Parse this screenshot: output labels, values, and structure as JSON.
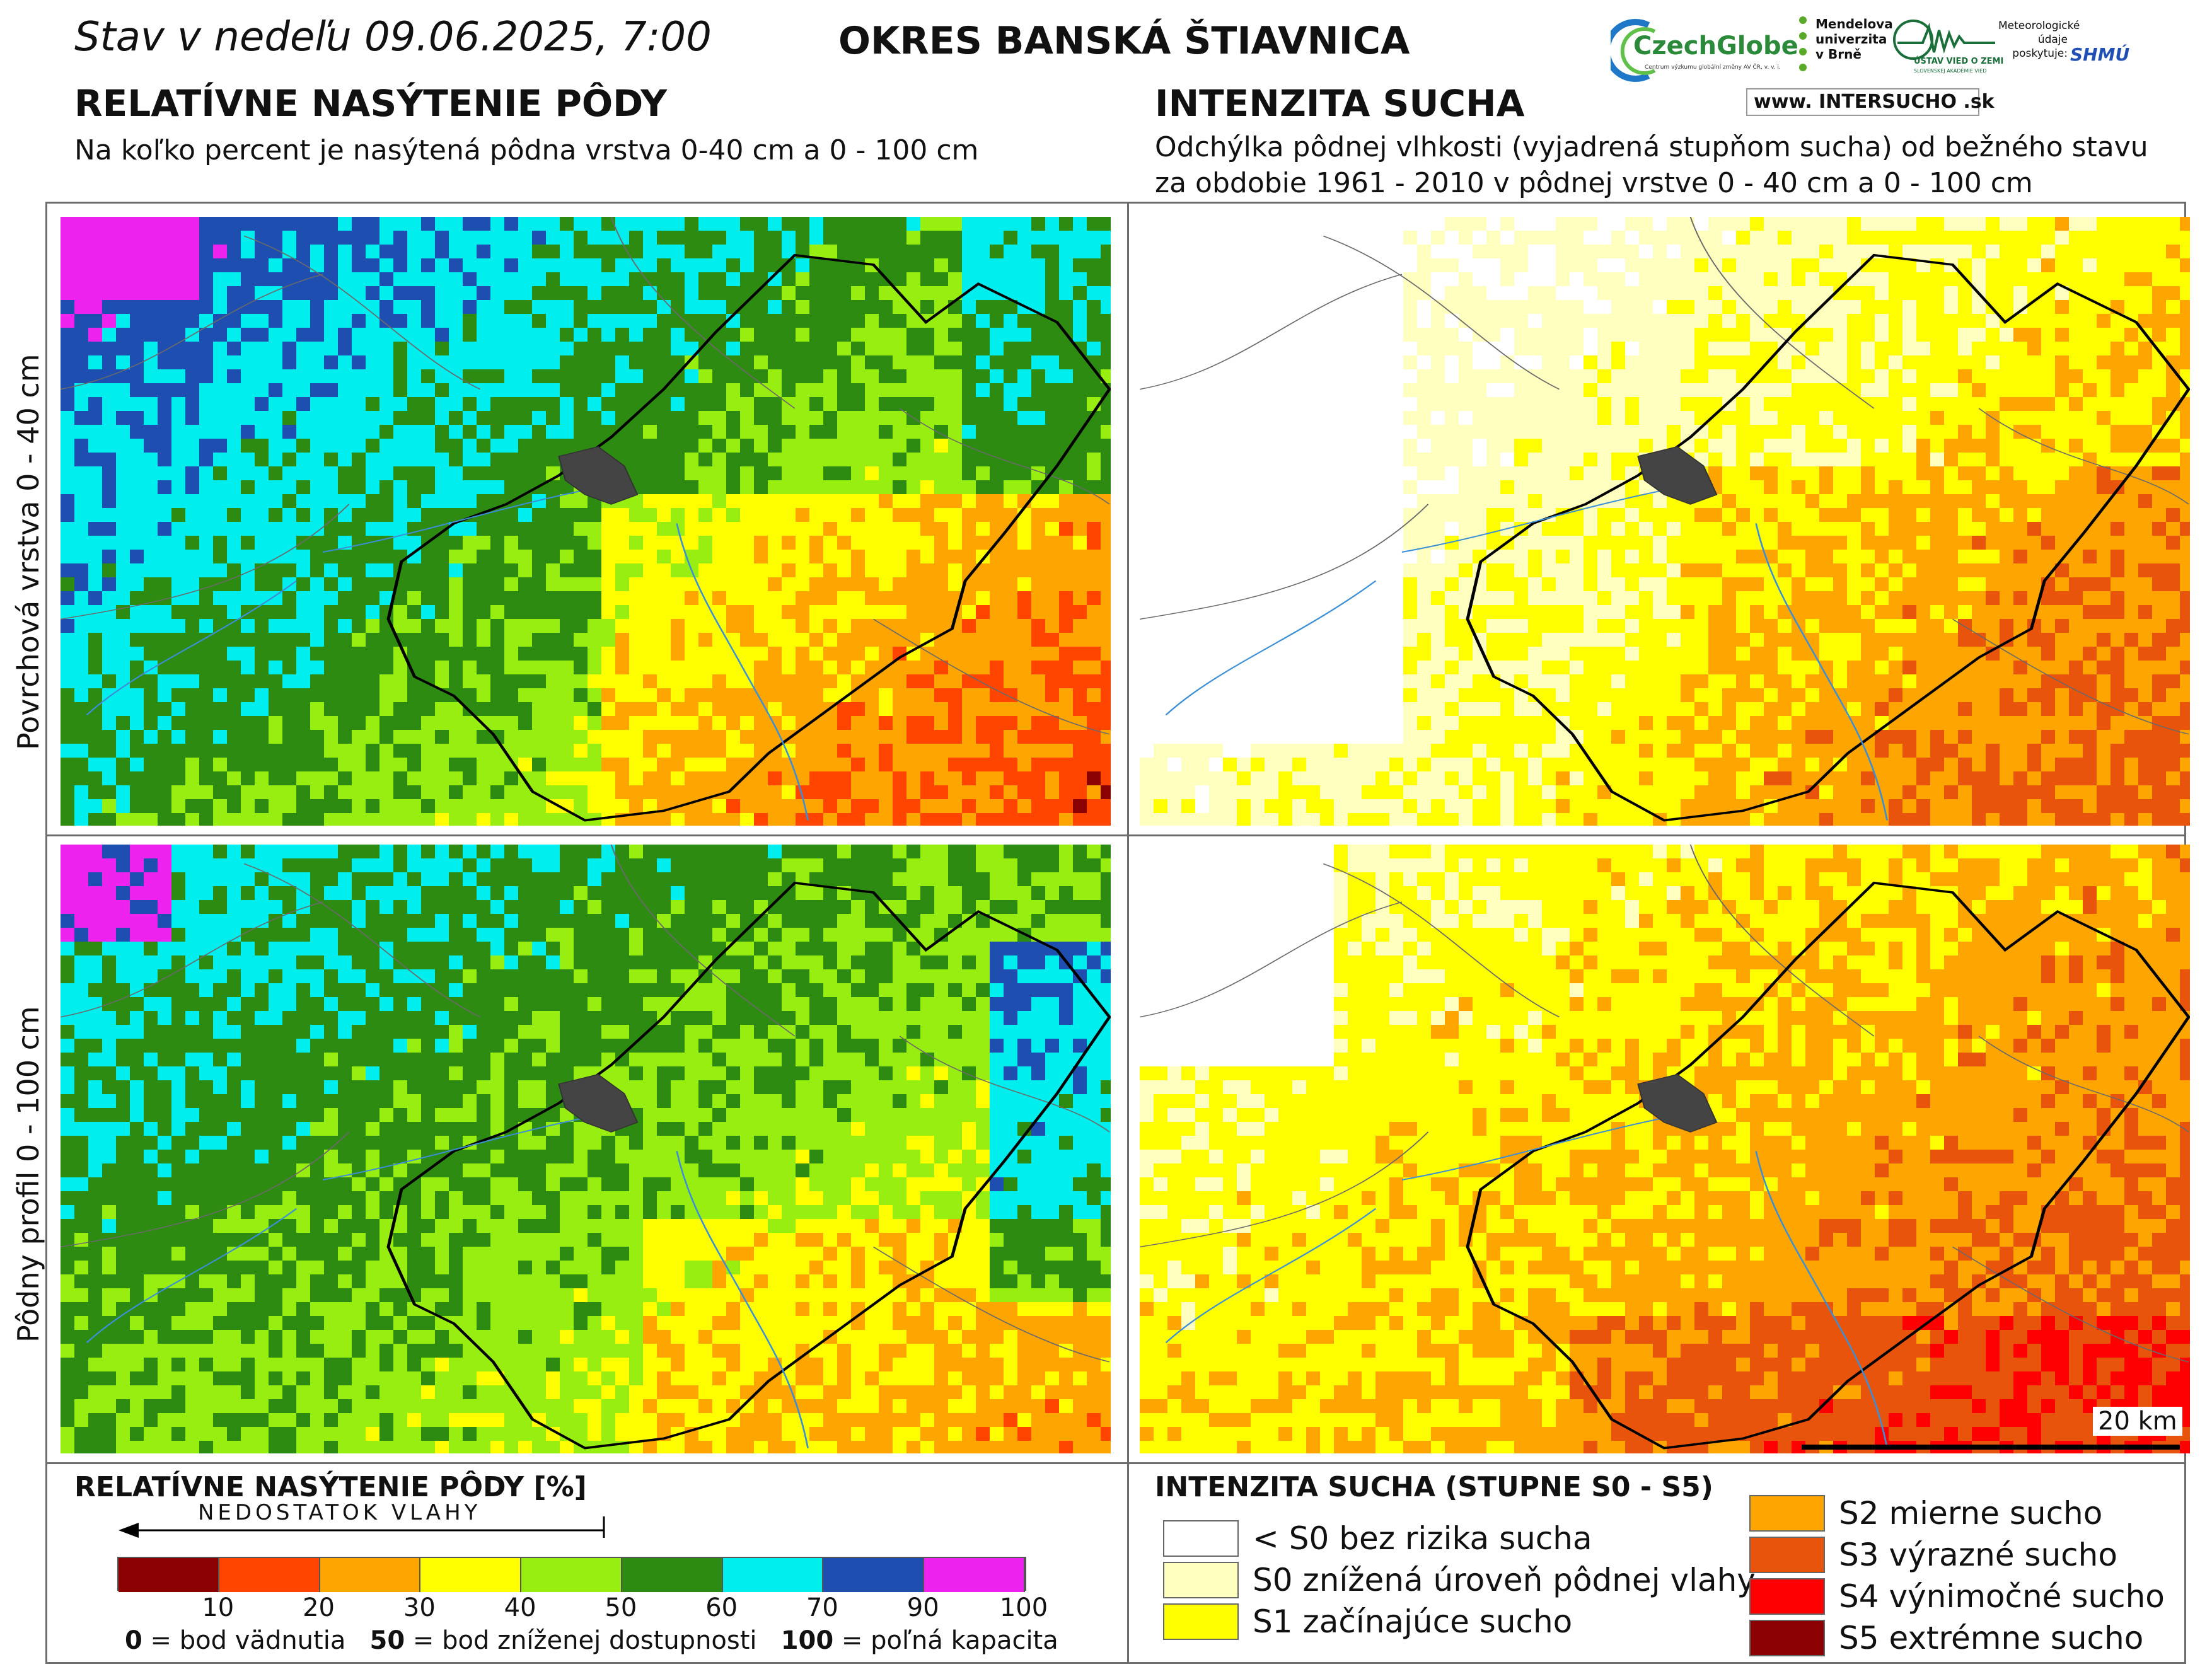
{
  "header": {
    "date_line": "Stav v nedeľu 09.06.2025, 7:00",
    "district": "OKRES  BANSKÁ ŠTIAVNICA"
  },
  "left_section": {
    "title": "RELATÍVNE NASÝTENIE PÔDY",
    "subtitle": "Na koľko percent je nasýtená pôdna vrstva 0-40 cm a 0 - 100 cm"
  },
  "right_section": {
    "title": "INTENZITA SUCHA",
    "subtitle_line1": "Odchýlka pôdnej vlhkosti (vyjadrená stupňom sucha) od bežného stavu",
    "subtitle_line2": "za obdobie 1961 - 2010 v pôdnej vrstve 0 - 40 cm a 0 - 100 cm"
  },
  "row_labels": {
    "top": "Povrchová vrstva 0 - 40 cm",
    "bottom": "Pôdny profil 0 - 100 cm"
  },
  "logos": {
    "czechglobe": "CzechGlobe",
    "czechglobe_small": "Centrum výzkumu globální změny AV ČR, v. v. i.",
    "mendel": "Mendelova univerzita v Brně",
    "uvz": "ÚSTAV VIED O ZEMI",
    "uvz_small": "SLOVENSKEJ AKADÉMIE VIED",
    "shmu_note": "Meteorologické údaje poskytuje:",
    "shmu": "SHMÚ",
    "intersucho": "www. INTERSUCHO .sk"
  },
  "scale_bar": {
    "label": "20 km"
  },
  "saturation_legend": {
    "title": "RELATÍVNE NASÝTENIE PÔDY [%]",
    "arrow_label": "NEDOSTATOK VLAHY",
    "classes": [
      {
        "color": "#8b0000"
      },
      {
        "color": "#ff4500"
      },
      {
        "color": "#ffa500"
      },
      {
        "color": "#ffff00"
      },
      {
        "color": "#99ee11"
      },
      {
        "color": "#2e8b12"
      },
      {
        "color": "#00eeee"
      },
      {
        "color": "#1e4fb0"
      },
      {
        "color": "#ee22ee"
      }
    ],
    "ticks": [
      "10",
      "20",
      "30",
      "40",
      "50",
      "60",
      "70",
      "90",
      "100"
    ],
    "footnote_0_num": "0",
    "footnote_0_text": " = bod vädnutia",
    "footnote_50_num": "50",
    "footnote_50_text": " = bod zníženej dostupnosti",
    "footnote_100_num": "100",
    "footnote_100_text": " = poľná kapacita"
  },
  "drought_legend": {
    "title": "INTENZITA SUCHA (STUPNE S0 - S5)",
    "items": [
      {
        "color": "#ffffff",
        "label": "< S0 bez rizika sucha"
      },
      {
        "color": "#ffffc0",
        "label": "S0 znížená úroveň pôdnej vlahy"
      },
      {
        "color": "#ffff00",
        "label": "S1 začínajúce sucho"
      },
      {
        "color": "#ffa500",
        "label": "S2 mierne sucho"
      },
      {
        "color": "#e8540c",
        "label": "S3 výrazné sucho"
      },
      {
        "color": "#ff0000",
        "label": "S4 výnimočné sucho"
      },
      {
        "color": "#8b0000",
        "label": "S5 extrémne sucho"
      }
    ]
  }
}
